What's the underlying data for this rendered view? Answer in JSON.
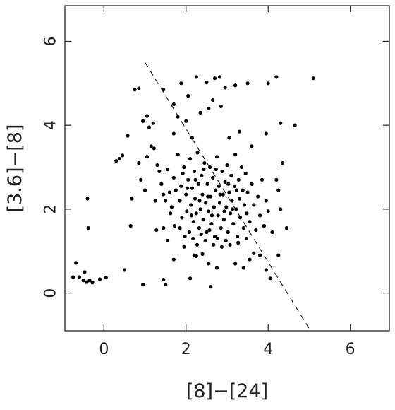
{
  "chart_data": {
    "type": "scatter",
    "title": "",
    "xlabel": "[8]−[24]",
    "ylabel": "[3.6]−[8]",
    "xlim": [
      -0.95,
      6.95
    ],
    "ylim": [
      -0.9,
      6.85
    ],
    "xticks": [
      0,
      2,
      4,
      6
    ],
    "yticks": [
      0,
      2,
      4,
      6
    ],
    "xtick_labels": [
      "0",
      "2",
      "4",
      "6"
    ],
    "ytick_labels": [
      "0",
      "2",
      "4",
      "6"
    ],
    "grid": false,
    "legend": "none",
    "point_color": "#000000",
    "reference_line": {
      "style": "dashed",
      "x": [
        1.0,
        5.0
      ],
      "y": [
        5.5,
        -0.85
      ]
    },
    "series": [
      {
        "points": [
          [
            -0.75,
            0.38
          ],
          [
            -0.6,
            0.38
          ],
          [
            -0.5,
            0.3
          ],
          [
            -0.42,
            0.26
          ],
          [
            -0.35,
            0.3
          ],
          [
            -0.28,
            0.25
          ],
          [
            -0.1,
            0.33
          ],
          [
            0.05,
            0.37
          ],
          [
            -0.68,
            0.72
          ],
          [
            -0.47,
            0.5
          ],
          [
            -0.4,
            2.25
          ],
          [
            -0.38,
            1.55
          ],
          [
            0.95,
            0.2
          ],
          [
            1.45,
            0.32
          ],
          [
            1.5,
            0.2
          ],
          [
            0.5,
            0.55
          ],
          [
            0.65,
            1.6
          ],
          [
            0.68,
            2.25
          ],
          [
            0.75,
            4.85
          ],
          [
            0.85,
            4.88
          ],
          [
            0.95,
            4.1
          ],
          [
            1.05,
            4.22
          ],
          [
            1.1,
            3.95
          ],
          [
            1.2,
            4.05
          ],
          [
            1.45,
            4.85
          ],
          [
            1.7,
            4.5
          ],
          [
            1.88,
            5.0
          ],
          [
            2.05,
            4.7
          ],
          [
            2.25,
            5.15
          ],
          [
            2.5,
            5.02
          ],
          [
            2.7,
            5.12
          ],
          [
            2.82,
            5.15
          ],
          [
            2.95,
            4.9
          ],
          [
            3.2,
            4.95
          ],
          [
            3.5,
            5.0
          ],
          [
            4.0,
            5.0
          ],
          [
            4.2,
            5.15
          ],
          [
            4.65,
            4.0
          ],
          [
            4.3,
            4.05
          ],
          [
            5.1,
            5.12
          ],
          [
            0.3,
            3.15
          ],
          [
            0.38,
            3.2
          ],
          [
            0.45,
            3.28
          ],
          [
            0.58,
            3.75
          ],
          [
            0.85,
            3.1
          ],
          [
            0.9,
            2.7
          ],
          [
            1.0,
            2.45
          ],
          [
            1.05,
            3.25
          ],
          [
            1.15,
            3.5
          ],
          [
            1.22,
            3.45
          ],
          [
            1.25,
            2.2
          ],
          [
            1.28,
            1.5
          ],
          [
            1.35,
            2.9
          ],
          [
            1.7,
            3.8
          ],
          [
            1.8,
            4.2
          ],
          [
            2.0,
            4.1
          ],
          [
            2.15,
            3.7
          ],
          [
            2.35,
            4.3
          ],
          [
            2.55,
            4.4
          ],
          [
            2.65,
            4.6
          ],
          [
            2.85,
            4.45
          ],
          [
            3.05,
            3.7
          ],
          [
            3.3,
            3.85
          ],
          [
            3.6,
            3.5
          ],
          [
            3.95,
            3.8
          ],
          [
            4.2,
            2.7
          ],
          [
            4.25,
            2.45
          ],
          [
            4.35,
            3.1
          ],
          [
            4.3,
            2.0
          ],
          [
            4.45,
            1.55
          ],
          [
            4.1,
            1.45
          ],
          [
            4.25,
            0.9
          ],
          [
            4.05,
            0.35
          ],
          [
            3.8,
            0.9
          ],
          [
            3.55,
            0.8
          ],
          [
            3.4,
            0.6
          ],
          [
            3.2,
            0.7
          ],
          [
            2.75,
            0.6
          ],
          [
            2.6,
            0.15
          ],
          [
            2.55,
            0.7
          ],
          [
            2.2,
            0.9
          ],
          [
            2.1,
            0.35
          ],
          [
            1.95,
            1.1
          ],
          [
            1.7,
            0.8
          ],
          [
            1.55,
            1.25
          ],
          [
            1.45,
            1.55
          ],
          [
            1.85,
            1.55
          ],
          [
            2.25,
            0.88
          ],
          [
            2.4,
            0.93
          ],
          [
            3.65,
            0.95
          ],
          [
            3.95,
            0.55
          ],
          [
            1.3,
            3.05
          ],
          [
            1.4,
            2.6
          ],
          [
            1.5,
            2.2
          ],
          [
            1.55,
            2.95
          ],
          [
            1.6,
            2.4
          ],
          [
            1.62,
            1.9
          ],
          [
            1.7,
            2.75
          ],
          [
            1.72,
            1.6
          ],
          [
            1.8,
            3.3
          ],
          [
            1.85,
            2.2
          ],
          [
            1.88,
            2.55
          ],
          [
            1.9,
            1.8
          ],
          [
            1.95,
            3.0
          ],
          [
            2.0,
            2.35
          ],
          [
            2.02,
            1.95
          ],
          [
            2.05,
            2.7
          ],
          [
            2.08,
            1.45
          ],
          [
            2.1,
            3.2
          ],
          [
            2.12,
            2.1
          ],
          [
            2.15,
            2.5
          ],
          [
            2.18,
            1.7
          ],
          [
            2.2,
            2.9
          ],
          [
            2.22,
            2.25
          ],
          [
            2.25,
            1.9
          ],
          [
            2.28,
            3.35
          ],
          [
            2.3,
            2.6
          ],
          [
            2.32,
            1.55
          ],
          [
            2.35,
            2.0
          ],
          [
            2.38,
            2.8
          ],
          [
            2.4,
            2.35
          ],
          [
            2.42,
            1.75
          ],
          [
            2.45,
            3.1
          ],
          [
            2.48,
            2.15
          ],
          [
            2.5,
            1.45
          ],
          [
            2.52,
            2.6
          ],
          [
            2.55,
            1.95
          ],
          [
            2.58,
            3.0
          ],
          [
            2.6,
            2.3
          ],
          [
            2.62,
            1.65
          ],
          [
            2.65,
            2.75
          ],
          [
            2.68,
            2.05
          ],
          [
            2.7,
            1.35
          ],
          [
            2.72,
            2.45
          ],
          [
            2.75,
            3.25
          ],
          [
            2.78,
            1.85
          ],
          [
            2.8,
            2.55
          ],
          [
            2.82,
            2.15
          ],
          [
            2.85,
            1.55
          ],
          [
            2.88,
            2.9
          ],
          [
            2.9,
            2.35
          ],
          [
            2.92,
            1.75
          ],
          [
            2.95,
            2.65
          ],
          [
            2.98,
            2.05
          ],
          [
            3.0,
            3.05
          ],
          [
            3.02,
            1.45
          ],
          [
            3.05,
            2.4
          ],
          [
            3.08,
            1.9
          ],
          [
            3.1,
            2.8
          ],
          [
            3.12,
            2.2
          ],
          [
            3.15,
            1.65
          ],
          [
            3.18,
            2.55
          ],
          [
            3.2,
            3.3
          ],
          [
            3.22,
            2.0
          ],
          [
            3.25,
            1.35
          ],
          [
            3.28,
            2.7
          ],
          [
            3.3,
            2.25
          ],
          [
            3.32,
            1.8
          ],
          [
            3.35,
            3.0
          ],
          [
            3.38,
            2.45
          ],
          [
            3.4,
            1.55
          ],
          [
            3.42,
            2.1
          ],
          [
            3.45,
            2.85
          ],
          [
            3.48,
            1.9
          ],
          [
            3.5,
            2.4
          ],
          [
            3.55,
            1.7
          ],
          [
            3.6,
            2.6
          ],
          [
            3.65,
            2.1
          ],
          [
            3.7,
            1.5
          ],
          [
            3.75,
            2.3
          ],
          [
            3.8,
            1.85
          ],
          [
            3.85,
            2.7
          ],
          [
            3.9,
            1.6
          ],
          [
            3.95,
            2.2
          ],
          [
            4.0,
            1.95
          ],
          [
            1.45,
            2.35
          ],
          [
            1.65,
            2.05
          ],
          [
            1.75,
            2.45
          ],
          [
            1.92,
            2.85
          ],
          [
            2.03,
            2.5
          ],
          [
            2.13,
            1.85
          ],
          [
            2.23,
            2.7
          ],
          [
            2.33,
            2.2
          ],
          [
            2.43,
            2.95
          ],
          [
            2.53,
            2.3
          ],
          [
            2.63,
            1.85
          ],
          [
            2.73,
            2.95
          ],
          [
            2.83,
            2.35
          ],
          [
            2.93,
            1.95
          ],
          [
            3.03,
            2.6
          ],
          [
            3.13,
            2.0
          ],
          [
            3.23,
            2.45
          ],
          [
            2.47,
            1.25
          ],
          [
            2.57,
            1.5
          ],
          [
            2.67,
            1.15
          ],
          [
            2.77,
            1.3
          ],
          [
            2.87,
            1.1
          ],
          [
            2.97,
            1.25
          ],
          [
            2.17,
            1.3
          ],
          [
            2.27,
            1.15
          ],
          [
            2.37,
            1.4
          ],
          [
            1.97,
            1.35
          ],
          [
            3.07,
            1.15
          ],
          [
            3.27,
            1.2
          ],
          [
            3.47,
            1.3
          ]
        ]
      }
    ]
  }
}
